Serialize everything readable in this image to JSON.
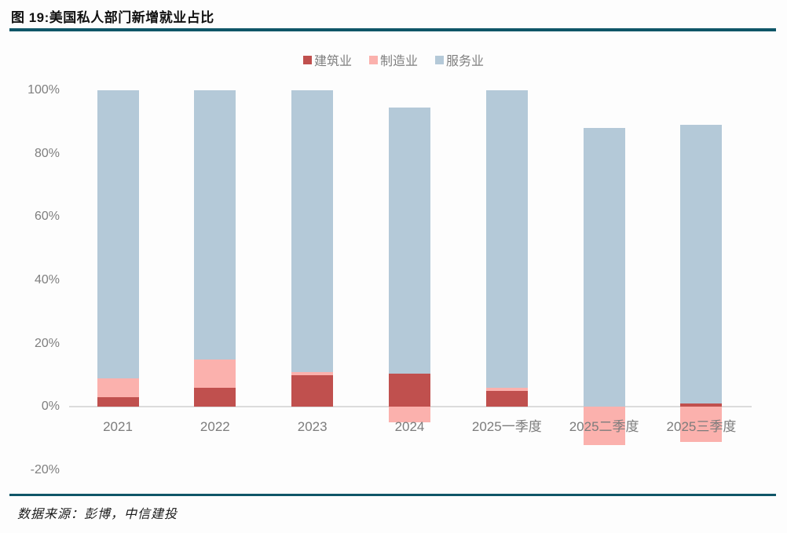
{
  "header": {
    "title": "图 19:美国私人部门新增就业占比"
  },
  "footer": {
    "source": "数据来源：彭博，中信建投"
  },
  "colors": {
    "construction": "#c0504e",
    "manufacturing": "#fbb1ad",
    "services": "#b4c9d8",
    "rule": "#0f5668",
    "axis_text": "#7f7f7f",
    "axis_line": "#dcdcdc"
  },
  "chart_data": {
    "type": "bar",
    "stacked": true,
    "title": "图 19:美国私人部门新增就业占比",
    "xlabel": "",
    "ylabel": "",
    "categories": [
      "2021",
      "2022",
      "2023",
      "2024",
      "2025一季度",
      "2025二季度",
      "2025三季度"
    ],
    "series": [
      {
        "name": "建筑业",
        "color_key": "construction",
        "values": [
          3,
          6,
          10,
          10.5,
          5,
          0,
          1
        ]
      },
      {
        "name": "制造业",
        "color_key": "manufacturing",
        "values": [
          6,
          9,
          1,
          -5,
          1,
          -12,
          -11
        ]
      },
      {
        "name": "服务业",
        "color_key": "services",
        "values": [
          91,
          85,
          89,
          84,
          94,
          88,
          88
        ]
      }
    ],
    "ylim": [
      -20,
      100
    ],
    "yticks": [
      100,
      80,
      60,
      40,
      20,
      0,
      -20
    ],
    "ytick_suffix": "%",
    "grid": false,
    "legend_position": "top-center"
  }
}
